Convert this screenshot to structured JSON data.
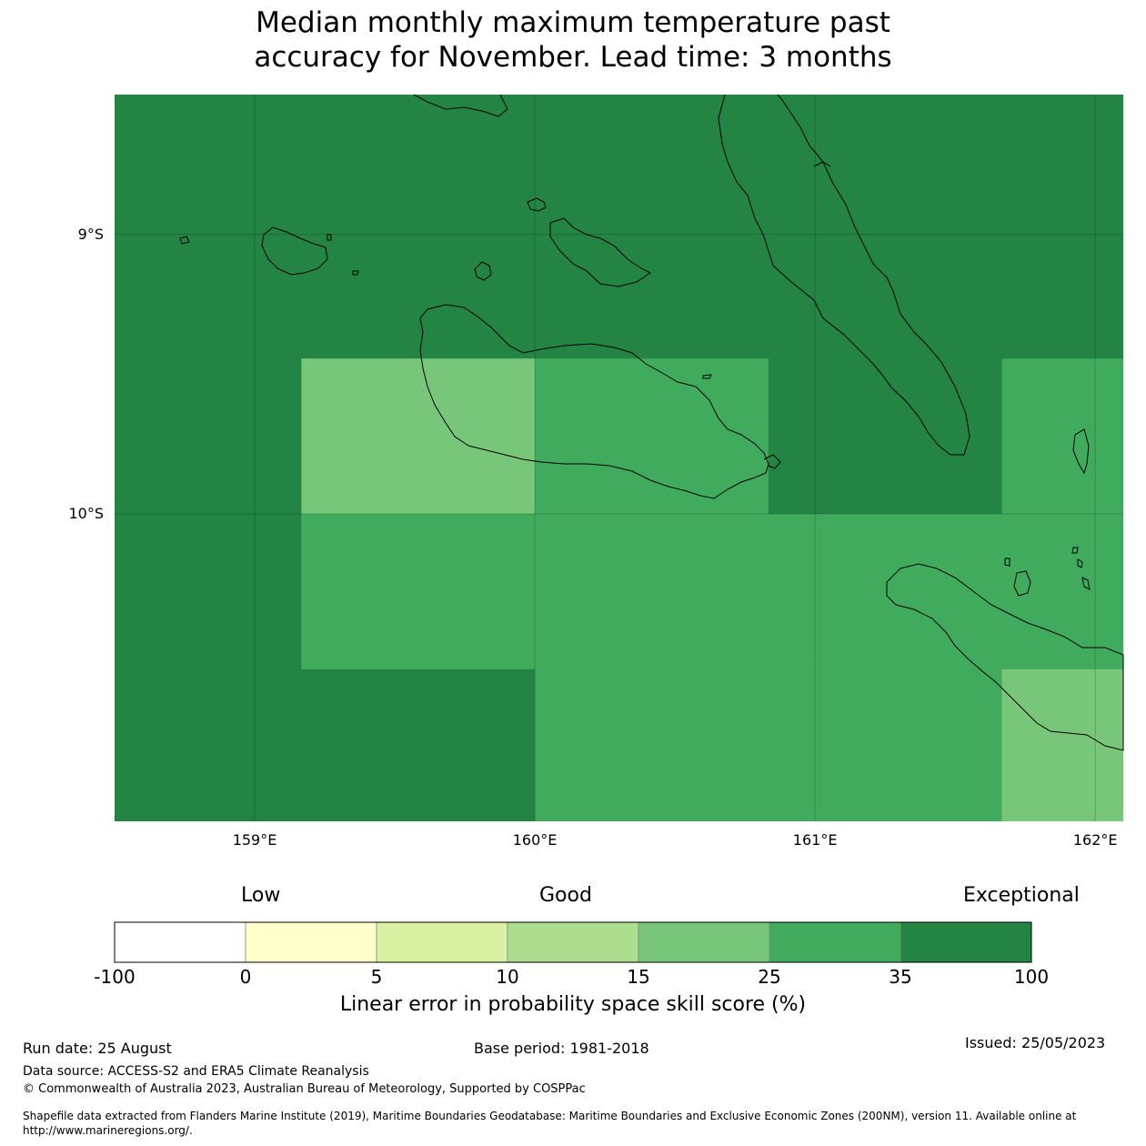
{
  "title_line1": "Median monthly maximum temperature past",
  "title_line2": "accuracy for November. Lead time: 3 months",
  "map": {
    "extent": {
      "lon_min": 158.5,
      "lon_max": 162.1,
      "lat_min": -11.1,
      "lat_max": -8.5
    },
    "lon_ticks": [
      {
        "value": 159,
        "label": "159°E"
      },
      {
        "value": 160,
        "label": "160°E"
      },
      {
        "value": 161,
        "label": "161°E"
      },
      {
        "value": 162,
        "label": "162°E"
      }
    ],
    "lat_ticks": [
      {
        "value": -9,
        "label": "9°S"
      },
      {
        "value": -10,
        "label": "10°S"
      }
    ],
    "grid_cells": [
      {
        "lon0": 158.5,
        "lon1": 162.1,
        "lat0": -11.1,
        "lat1": -8.5,
        "category": "35-100"
      },
      {
        "lon0": 159.1667,
        "lon1": 160.0,
        "lat0": -10.0,
        "lat1": -9.4444,
        "category": "15-25"
      },
      {
        "lon0": 160.0,
        "lon1": 160.8333,
        "lat0": -10.0,
        "lat1": -9.4444,
        "category": "25-35"
      },
      {
        "lon0": 161.6667,
        "lon1": 162.1,
        "lat0": -10.0,
        "lat1": -9.4444,
        "category": "25-35"
      },
      {
        "lon0": 159.1667,
        "lon1": 162.1,
        "lat0": -10.5556,
        "lat1": -10.0,
        "category": "25-35"
      },
      {
        "lon0": 160.0,
        "lon1": 161.6667,
        "lat0": -11.1,
        "lat1": -10.5556,
        "category": "25-35"
      },
      {
        "lon0": 161.6667,
        "lon1": 162.1,
        "lat0": -11.1,
        "lat1": -10.5556,
        "category": "15-25"
      }
    ]
  },
  "colorbar": {
    "categories": [
      "Low",
      "Good",
      "Exceptional"
    ],
    "bins": [
      {
        "range": "-100-0",
        "color": "#ffffff"
      },
      {
        "range": "0-5",
        "color": "#ffffcc"
      },
      {
        "range": "5-10",
        "color": "#d9f0a3"
      },
      {
        "range": "10-15",
        "color": "#addd8e"
      },
      {
        "range": "15-25",
        "color": "#78c679"
      },
      {
        "range": "25-35",
        "color": "#41ab5d"
      },
      {
        "range": "35-100",
        "color": "#238443"
      }
    ],
    "ticks": [
      "-100",
      "0",
      "5",
      "10",
      "15",
      "25",
      "35",
      "100"
    ],
    "label": "Linear error in probability space skill score (%)"
  },
  "footer": {
    "run_date": "Run date: 25 August",
    "base_period": "Base period: 1981-2018",
    "issued": "Issued: 25/05/2023",
    "data_source": "Data source: ACCESS-S2 and ERA5 Climate Reanalysis",
    "copyright": "© Commonwealth of Australia 2023, Australian Bureau of Meteorology, Supported by COSPPac",
    "shapefile_line1": "Shapefile data extracted from Flanders Marine Institute (2019), Maritime Boundaries Geodatabase: Maritime Boundaries and Exclusive Economic Zones (200NM), version 11. Available online at",
    "shapefile_line2": "http://www.marineregions.org/."
  }
}
